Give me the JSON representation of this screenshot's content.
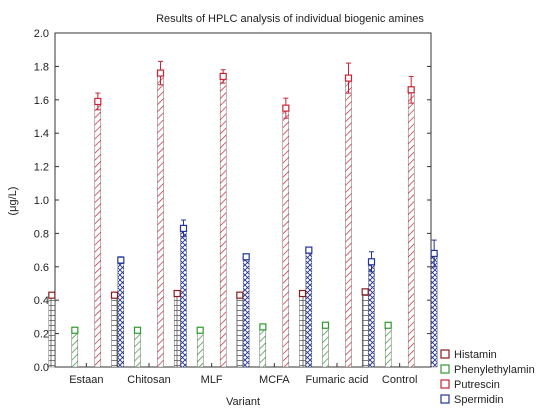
{
  "chart_data": {
    "type": "bar",
    "title": "Results of HPLC analysis of individual biogenic amines",
    "xlabel": "Variant",
    "ylabel": "(μg/L)",
    "ylim": [
      0,
      2.0
    ],
    "yticks": [
      "0.0",
      "0.2",
      "0.4",
      "0.6",
      "0.8",
      "1.0",
      "1.2",
      "1.4",
      "1.6",
      "1.8",
      "2.0"
    ],
    "grid": false,
    "legend_position": "bottom-right",
    "error_bars": true,
    "categories": [
      "Estaan",
      "Chitosan",
      "MLF",
      "MCFA",
      "Fumaric acid",
      "Control"
    ],
    "series": [
      {
        "name": "Histamin",
        "color": "#8b1a1a",
        "pattern": "grid",
        "values": [
          0.43,
          0.43,
          0.44,
          0.43,
          0.44,
          0.45
        ],
        "errors": [
          0.01,
          0.01,
          0.01,
          0.01,
          0.01,
          0.01
        ]
      },
      {
        "name": "Phenylethylamin",
        "color": "#2e9a2e",
        "pattern": "diagonal",
        "values": [
          0.22,
          0.22,
          0.22,
          0.24,
          0.25,
          0.25
        ],
        "errors": [
          0.01,
          0.01,
          0.01,
          0.01,
          0.01,
          0.01
        ]
      },
      {
        "name": "Putrescin",
        "color": "#cc2233",
        "pattern": "diagonal",
        "values": [
          1.59,
          1.76,
          1.74,
          1.55,
          1.73,
          1.66
        ],
        "errors": [
          0.05,
          0.07,
          0.04,
          0.06,
          0.09,
          0.08
        ]
      },
      {
        "name": "Spermidin",
        "color": "#223399",
        "pattern": "cross",
        "values": [
          0.64,
          0.83,
          0.66,
          0.7,
          0.63,
          0.68
        ],
        "errors": [
          0.02,
          0.05,
          0.01,
          0.01,
          0.06,
          0.08
        ]
      }
    ]
  }
}
